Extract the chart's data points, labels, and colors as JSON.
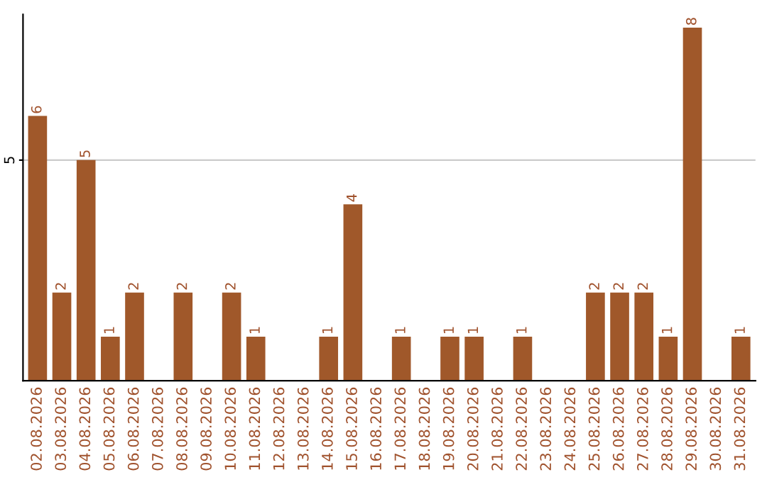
{
  "chart_data": {
    "type": "bar",
    "categories": [
      "02.08.2026",
      "03.08.2026",
      "04.08.2026",
      "05.08.2026",
      "06.08.2026",
      "07.08.2026",
      "08.08.2026",
      "09.08.2026",
      "10.08.2026",
      "11.08.2026",
      "12.08.2026",
      "13.08.2026",
      "14.08.2026",
      "15.08.2026",
      "16.08.2026",
      "17.08.2026",
      "18.08.2026",
      "19.08.2026",
      "20.08.2026",
      "21.08.2026",
      "22.08.2026",
      "23.08.2026",
      "24.08.2026",
      "25.08.2026",
      "26.08.2026",
      "27.08.2026",
      "28.08.2026",
      "29.08.2026",
      "30.08.2026",
      "31.08.2026"
    ],
    "values": [
      6,
      2,
      5,
      1,
      2,
      0,
      2,
      0,
      2,
      1,
      0,
      0,
      1,
      4,
      0,
      1,
      0,
      1,
      1,
      0,
      1,
      0,
      0,
      2,
      2,
      2,
      1,
      8,
      0,
      1
    ],
    "value_labels": [
      "6",
      "2",
      "5",
      "1",
      "2",
      null,
      "2",
      null,
      "2",
      "1",
      null,
      null,
      "1",
      "4",
      null,
      "1",
      null,
      "1",
      "1",
      null,
      "1",
      null,
      null,
      "2",
      "2",
      "2",
      "1",
      "8",
      null,
      "1"
    ],
    "color": "#a0582a",
    "ylim": [
      0,
      8.3
    ],
    "yticks": [
      5
    ],
    "grid": "y"
  }
}
